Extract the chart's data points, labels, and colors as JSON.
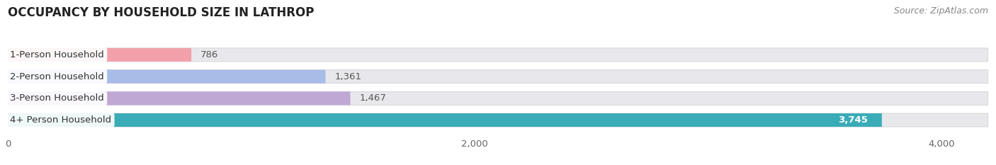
{
  "title": "OCCUPANCY BY HOUSEHOLD SIZE IN LATHROP",
  "source": "Source: ZipAtlas.com",
  "categories": [
    "1-Person Household",
    "2-Person Household",
    "3-Person Household",
    "4+ Person Household"
  ],
  "values": [
    786,
    1361,
    1467,
    3745
  ],
  "bar_colors": [
    "#f2a0aa",
    "#a8bce8",
    "#c0a8d5",
    "#3aacb8"
  ],
  "value_labels": [
    "786",
    "1,361",
    "1,467",
    "3,745"
  ],
  "xlim_max": 4200,
  "xticks": [
    0,
    2000,
    4000
  ],
  "xtick_labels": [
    "0",
    "2,000",
    "4,000"
  ],
  "bg_color": "#ffffff",
  "bar_bg_color": "#e8e8ec",
  "title_fontsize": 12,
  "label_fontsize": 9.5,
  "value_fontsize": 9.5,
  "source_fontsize": 9,
  "bar_height": 0.62,
  "bar_gap": 0.38
}
